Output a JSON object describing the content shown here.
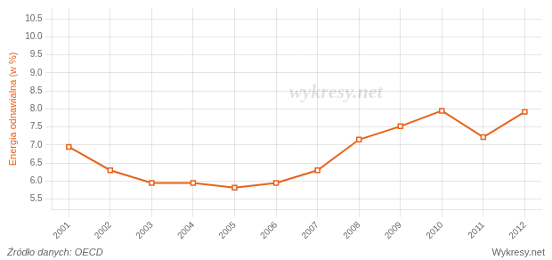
{
  "chart_data": {
    "type": "line",
    "ylabel": "Energia odnawialna (w %)",
    "x": [
      2001,
      2002,
      2003,
      2004,
      2005,
      2006,
      2007,
      2008,
      2009,
      2010,
      2011,
      2012
    ],
    "values": [
      6.95,
      6.3,
      5.95,
      5.95,
      5.82,
      5.95,
      6.3,
      7.15,
      7.52,
      7.95,
      7.22,
      7.92
    ],
    "color": "#e8621a",
    "marker": "square",
    "xlim": [
      2000.6,
      2012.4
    ],
    "xticks": [
      2001,
      2002,
      2003,
      2004,
      2005,
      2006,
      2007,
      2008,
      2009,
      2010,
      2011,
      2012
    ],
    "ylim": [
      5.2,
      10.8
    ],
    "yticks": [
      5.5,
      {
        "value": 6.0,
        "label": "6.0"
      },
      6.5,
      {
        "value": 7.0,
        "label": "7.0"
      },
      7.5,
      {
        "value": 8.0,
        "label": "8.0"
      },
      8.5,
      {
        "value": 9.0,
        "label": "9.0"
      },
      9.5,
      {
        "value": 10.0,
        "label": "10.0"
      },
      10.5
    ],
    "grid": true,
    "annotations": [
      "wykresy.net",
      "Źródło danych: OECD",
      "Wykresy.net"
    ]
  }
}
